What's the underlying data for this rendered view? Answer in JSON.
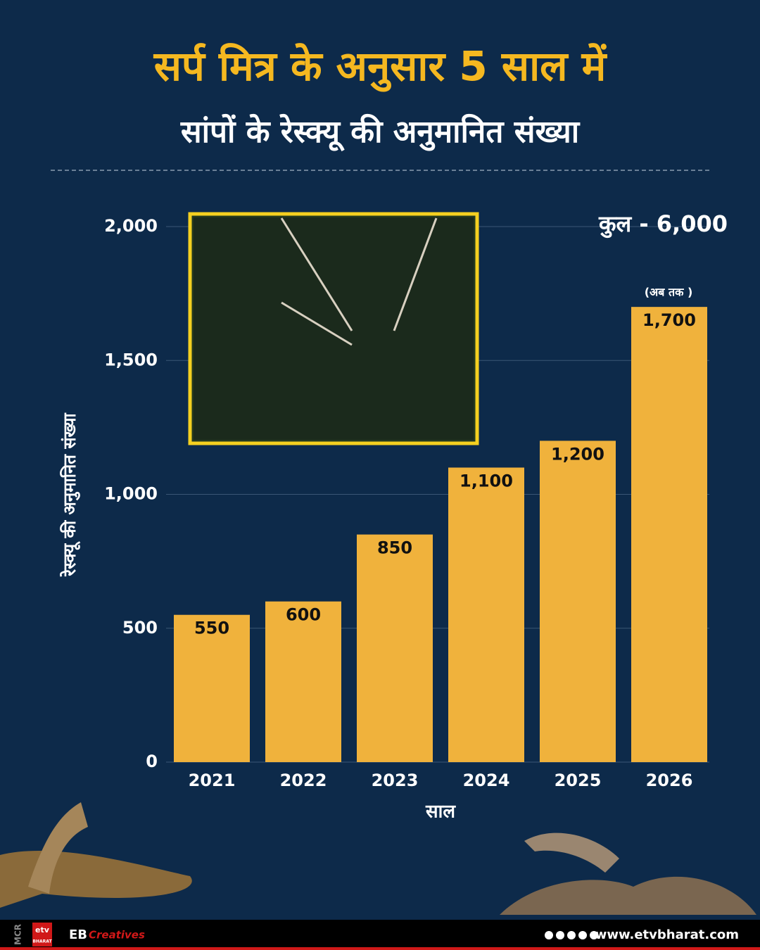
{
  "chart_data": {
    "type": "bar",
    "title": "सर्प मित्र के अनुसार 5 साल में",
    "subtitle": "सांपों के रेस्क्यू की अनुमानित संख्या",
    "ylabel": "रेस्क्यू की अनुमानित संख्या",
    "xlabel": "साल",
    "annotations": [
      "कुल -  6,000",
      "(अब तक )"
    ],
    "categories": [
      "2021",
      "2022",
      "2023",
      "2024",
      "2025",
      "2026"
    ],
    "values": [
      550,
      600,
      850,
      1100,
      1200,
      1700
    ],
    "value_labels": [
      "550",
      "600",
      "850",
      "1,100",
      "1,200",
      "1,700"
    ],
    "color": "#f0b23c",
    "ylim": [
      0,
      2000
    ],
    "yticks": [
      0,
      500,
      {
        "value": 1000,
        "label": "1,000"
      },
      {
        "value": 1500,
        "label": "1,500"
      },
      {
        "value": 2000,
        "label": "2,000"
      }
    ],
    "grid": true
  },
  "footer": {
    "brand": "EB",
    "brand_suffix": "Creatives",
    "website": "www.etvbharat.com",
    "side_note": "MCR",
    "logo": "etv",
    "logo_sub": "BHARAT"
  }
}
